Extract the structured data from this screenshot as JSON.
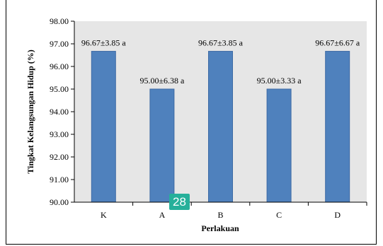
{
  "page_badge": "28",
  "chart_data": {
    "type": "bar",
    "categories": [
      "K",
      "A",
      "B",
      "C",
      "D"
    ],
    "values": [
      96.67,
      95.0,
      96.67,
      95.0,
      96.67
    ],
    "data_labels": [
      "96.67±3.85 a",
      "95.00±6.38 a",
      "96.67±3.85 a",
      "95.00±3.33 a",
      "96.67±6.67 a"
    ],
    "xlabel": "Perlakuan",
    "ylabel": "Tingkat Kelangsungan Hidup (%)",
    "ylim": [
      90,
      98
    ],
    "yticks": [
      "90.00",
      "91.00",
      "92.00",
      "93.00",
      "94.00",
      "95.00",
      "96.00",
      "97.00",
      "98.00"
    ],
    "grid": false,
    "colors": {
      "bar": "#4f81bd",
      "bar_border": "#3c6aa5",
      "plot_bg": "#e6e6e6"
    }
  }
}
